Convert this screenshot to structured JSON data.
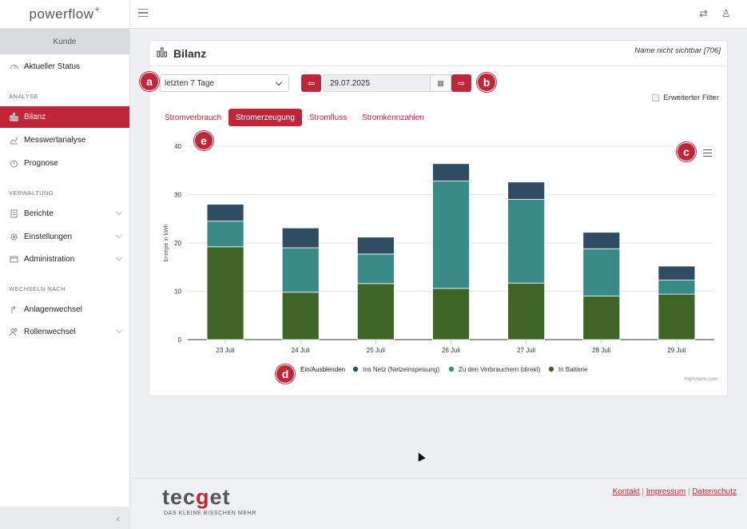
{
  "app": {
    "logo_text": "powerflow",
    "logo_plus": "+"
  },
  "sidebar": {
    "role": "Kunde",
    "items": [
      {
        "label": "Aktueller Status",
        "icon": "gauge-icon"
      },
      {
        "label": "Bilanz",
        "icon": "bar-chart-icon",
        "active": true
      },
      {
        "label": "Messwertanalyse",
        "icon": "line-chart-icon"
      },
      {
        "label": "Prognose",
        "icon": "timer-icon"
      },
      {
        "label": "Berichte",
        "icon": "document-icon"
      },
      {
        "label": "Einstellungen",
        "icon": "gear-icon"
      },
      {
        "label": "Administration",
        "icon": "window-icon"
      },
      {
        "label": "Anlagenwechsel",
        "icon": "swap-icon"
      },
      {
        "label": "Rollenwechsel",
        "icon": "users-icon"
      }
    ],
    "sections": [
      "ANALYSE",
      "VERWALTUNG",
      "WECHSELN NACH"
    ],
    "collapse_glyph": "‹"
  },
  "topbar": {
    "swap_glyph": "⇄",
    "user_glyph": "♙"
  },
  "card": {
    "title": "Bilanz",
    "subtitle": "Name nicht sichtbar [706]",
    "period_select": "letzten 7 Tage",
    "date": "29.07.2025",
    "prev_glyph": "⇦",
    "next_glyph": "⇨",
    "cal_glyph": "▦",
    "filter_label": "Erweiterter Filter",
    "tabs": [
      {
        "label": "Stromverbrauch",
        "active": false
      },
      {
        "label": "Stromerzeugung",
        "active": true
      },
      {
        "label": "Stromfluss",
        "active": false
      },
      {
        "label": "Stromkennzahlen",
        "active": false
      }
    ],
    "credit": "Highcharts.com"
  },
  "callouts": [
    "a",
    "b",
    "c",
    "d",
    "e"
  ],
  "chart_data": {
    "type": "bar",
    "stacked": true,
    "categories": [
      "23 Juli",
      "24 Juli",
      "25 Juli",
      "26 Juli",
      "27 Juli",
      "28 Juli",
      "29 Juli"
    ],
    "ylabel": "Energie in kWh",
    "ylim": [
      0,
      40
    ],
    "yticks": [
      0,
      10,
      20,
      30,
      40
    ],
    "grid": true,
    "legend_title": "Ein/Ausblenden",
    "legend_position": "bottom",
    "series": [
      {
        "name": "In Batterie",
        "color": "#3e6428",
        "values": [
          19.2,
          9.8,
          11.6,
          10.6,
          11.7,
          9.0,
          9.4
        ]
      },
      {
        "name": "Zu den Verbrauchern (direkt)",
        "color": "#3a8a88",
        "values": [
          5.3,
          9.2,
          6.1,
          22.2,
          17.3,
          9.8,
          2.9
        ]
      },
      {
        "name": "Ins Netz (Netzeinspeisung)",
        "color": "#2e4d63",
        "values": [
          3.5,
          4.1,
          3.5,
          3.6,
          3.6,
          3.4,
          2.9
        ]
      }
    ],
    "legend_order": [
      "Ins Netz (Netzeinspeisung)",
      "Zu den Verbrauchern (direkt)",
      "In Batterie"
    ]
  },
  "footer": {
    "brand_a": "tec",
    "brand_g": "g",
    "brand_b": "et",
    "tagline": "DAS KLEINE BISSCHEN MEHR",
    "links": [
      "Kontakt",
      "Impressum",
      "Datenschutz"
    ],
    "separator": "|"
  }
}
